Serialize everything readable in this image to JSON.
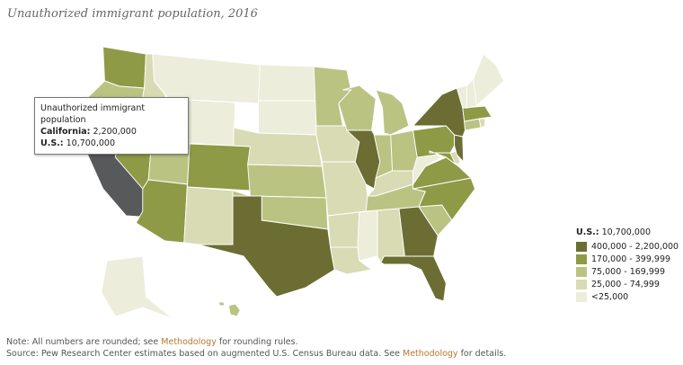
{
  "title": "Unauthorized immigrant population, 2016",
  "highlight_color": "#58595b",
  "tooltip": {
    "title": "Unauthorized immigrant population",
    "rows": [
      {
        "label": "California:",
        "value": "2,200,000"
      },
      {
        "label": "U.S.:",
        "value": "10,700,000"
      }
    ]
  },
  "legend": {
    "label": "U.S.:",
    "value": "10,700,000",
    "bins": [
      {
        "label": "400,000 - 2,200,000",
        "color": "#6b6d33"
      },
      {
        "label": "170,000 - 399,999",
        "color": "#8e9a45"
      },
      {
        "label": "75,000 - 169,999",
        "color": "#bac382"
      },
      {
        "label": "25,000 - 74,999",
        "color": "#d8dbb3"
      },
      {
        "label": "<25,000",
        "color": "#ecedda"
      }
    ]
  },
  "notes": {
    "note": [
      "Note: All numbers are rounded; see ",
      "Methodology",
      " for rounding rules."
    ],
    "source": [
      "Source: Pew Research Center estimates based on augmented U.S. Census Bureau data. See ",
      "Methodology",
      " for details."
    ]
  }
}
